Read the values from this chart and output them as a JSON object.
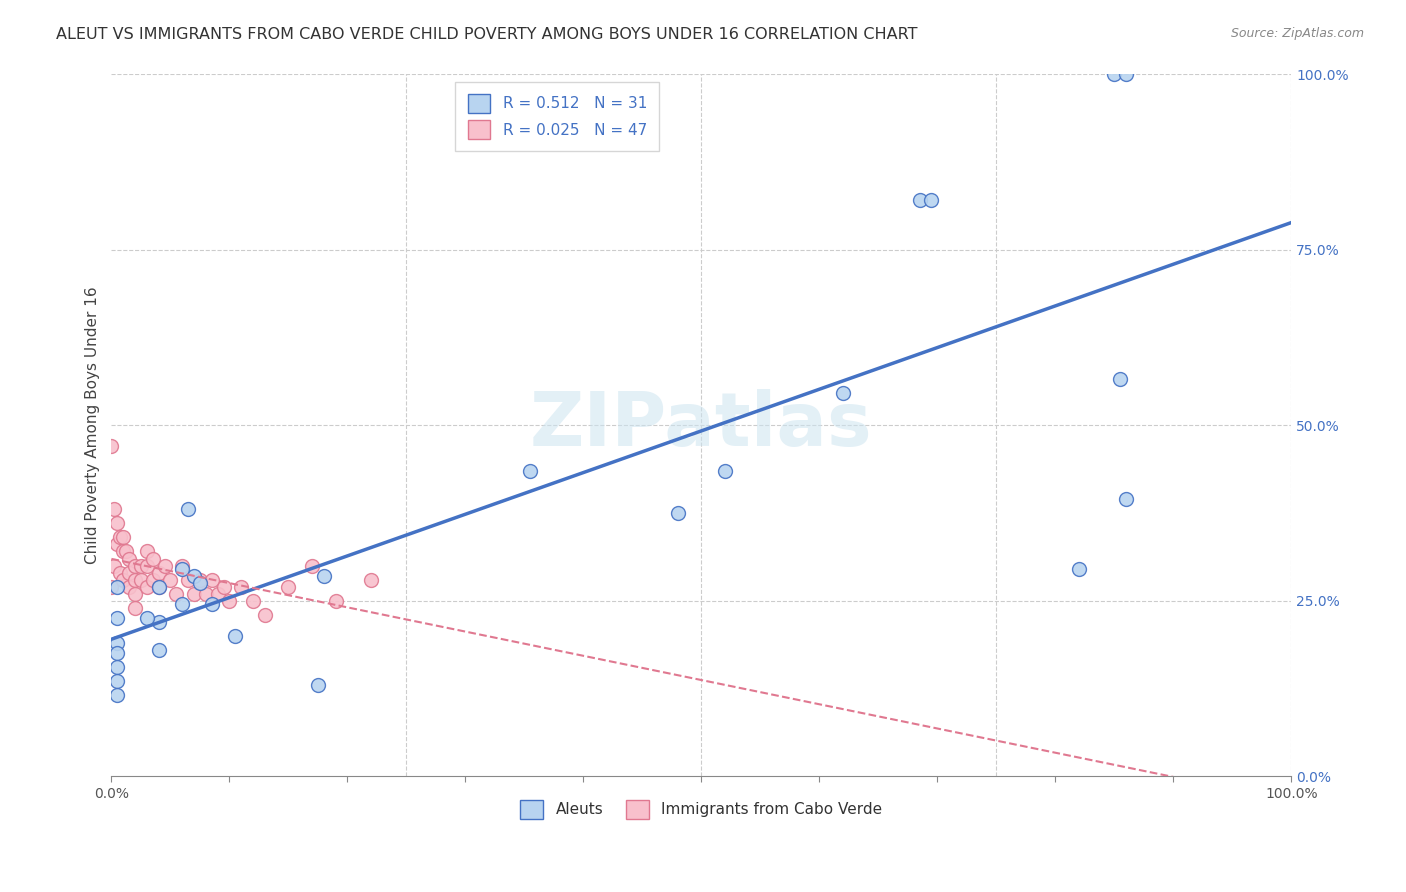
{
  "title": "ALEUT VS IMMIGRANTS FROM CABO VERDE CHILD POVERTY AMONG BOYS UNDER 16 CORRELATION CHART",
  "source": "Source: ZipAtlas.com",
  "ylabel": "Child Poverty Among Boys Under 16",
  "aleuts_R": "0.512",
  "aleuts_N": "31",
  "cabo_verde_R": "0.025",
  "cabo_verde_N": "47",
  "aleuts_color": "#b8d4f0",
  "cabo_verde_color": "#f8c0cc",
  "aleuts_line_color": "#4472c4",
  "cabo_verde_line_color": "#e07890",
  "legend_label_1": "Aleuts",
  "legend_label_2": "Immigrants from Cabo Verde",
  "watermark_text": "ZIPatlas",
  "aleuts_x": [
    0.355,
    0.85,
    0.52,
    0.685,
    0.695,
    0.065,
    0.07,
    0.075,
    0.085,
    0.105,
    0.18,
    0.175,
    0.04,
    0.04,
    0.04,
    0.03,
    0.06,
    0.06,
    0.48,
    0.62,
    0.82,
    0.855,
    0.86,
    0.86,
    0.005,
    0.005,
    0.005,
    0.005,
    0.005,
    0.005,
    0.005
  ],
  "aleuts_y": [
    0.435,
    1.0,
    0.435,
    0.82,
    0.82,
    0.38,
    0.285,
    0.275,
    0.245,
    0.2,
    0.285,
    0.13,
    0.27,
    0.22,
    0.18,
    0.225,
    0.295,
    0.245,
    0.375,
    0.545,
    0.295,
    0.565,
    1.0,
    0.395,
    0.27,
    0.225,
    0.19,
    0.175,
    0.155,
    0.135,
    0.115
  ],
  "cabo_verde_x": [
    0.0,
    0.0,
    0.002,
    0.002,
    0.005,
    0.005,
    0.007,
    0.007,
    0.01,
    0.01,
    0.01,
    0.012,
    0.015,
    0.015,
    0.015,
    0.02,
    0.02,
    0.02,
    0.02,
    0.025,
    0.025,
    0.03,
    0.03,
    0.03,
    0.035,
    0.035,
    0.04,
    0.04,
    0.045,
    0.05,
    0.055,
    0.06,
    0.065,
    0.07,
    0.075,
    0.08,
    0.085,
    0.09,
    0.095,
    0.1,
    0.11,
    0.12,
    0.13,
    0.15,
    0.17,
    0.19,
    0.22
  ],
  "cabo_verde_y": [
    0.47,
    0.27,
    0.38,
    0.3,
    0.36,
    0.33,
    0.34,
    0.29,
    0.34,
    0.32,
    0.28,
    0.32,
    0.31,
    0.29,
    0.27,
    0.3,
    0.28,
    0.26,
    0.24,
    0.3,
    0.28,
    0.32,
    0.3,
    0.27,
    0.31,
    0.28,
    0.29,
    0.27,
    0.3,
    0.28,
    0.26,
    0.3,
    0.28,
    0.26,
    0.28,
    0.26,
    0.28,
    0.26,
    0.27,
    0.25,
    0.27,
    0.25,
    0.23,
    0.27,
    0.3,
    0.25,
    0.28
  ],
  "title_fontsize": 11.5,
  "source_fontsize": 9,
  "axis_label_fontsize": 11,
  "tick_fontsize": 10,
  "legend_fontsize": 11,
  "marker_size": 100,
  "background_color": "#ffffff",
  "grid_color": "#cccccc",
  "ytick_values": [
    0.0,
    0.25,
    0.5,
    0.75,
    1.0
  ],
  "ytick_labels": [
    "0.0%",
    "25.0%",
    "50.0%",
    "75.0%",
    "100.0%"
  ],
  "xtick_minor_values": [
    0.1,
    0.2,
    0.3,
    0.4,
    0.5,
    0.6,
    0.7,
    0.8,
    0.9
  ]
}
